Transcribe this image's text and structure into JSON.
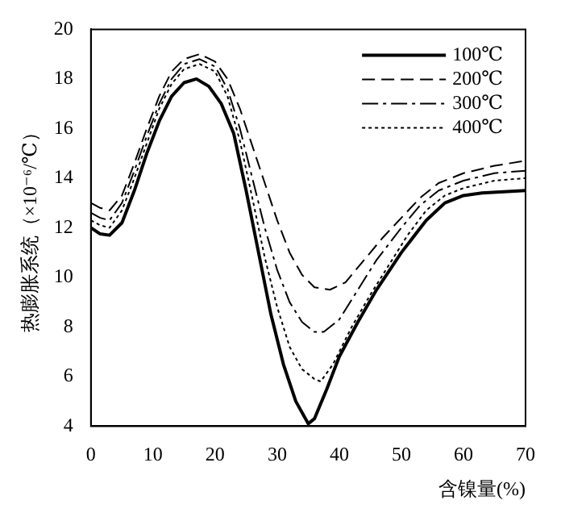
{
  "chart_data": {
    "type": "line",
    "xlabel": "含镍量(%)",
    "ylabel": "热膨胀系统（×10⁻⁶/℃）",
    "xlim": [
      0,
      70
    ],
    "xticks": [
      0,
      10,
      20,
      30,
      40,
      50,
      60,
      70
    ],
    "ylim": [
      4,
      20
    ],
    "yticks": [
      4,
      6,
      8,
      10,
      12,
      14,
      16,
      18,
      20
    ],
    "grid": false,
    "legend": "top right",
    "marker": "none",
    "series": [
      {
        "name": "100℃",
        "color": "#000000",
        "line_style": "solid",
        "x": [
          0,
          1.5,
          3,
          5,
          7,
          9,
          11,
          13,
          15,
          17,
          19,
          21,
          23,
          25,
          27,
          29,
          31,
          33,
          35,
          36,
          38,
          40,
          43,
          46,
          50,
          54,
          57,
          60,
          63,
          70
        ],
        "values": [
          12,
          11.75,
          11.7,
          12.2,
          13.5,
          15,
          16.3,
          17.3,
          17.85,
          18,
          17.7,
          17,
          15.8,
          13.5,
          11,
          8.5,
          6.5,
          5,
          4.1,
          4.3,
          5.5,
          6.8,
          8.2,
          9.5,
          11,
          12.3,
          13,
          13.3,
          13.4,
          13.5
        ]
      },
      {
        "name": "200℃",
        "color": "#000000",
        "line_style": "dashed",
        "x": [
          0,
          1.5,
          3,
          5,
          7,
          9,
          11,
          13,
          15,
          17.5,
          20,
          22,
          24,
          26,
          28,
          30,
          32,
          34,
          36,
          38.5,
          41,
          44,
          47,
          50,
          53,
          56,
          60,
          65,
          70
        ],
        "values": [
          13,
          12.8,
          12.7,
          13.3,
          14.6,
          16,
          17.3,
          18.3,
          18.8,
          19,
          18.7,
          18,
          16.8,
          15.3,
          13.8,
          12.3,
          11,
          10.1,
          9.6,
          9.5,
          9.8,
          10.7,
          11.6,
          12.4,
          13.2,
          13.8,
          14.2,
          14.5,
          14.7
        ]
      },
      {
        "name": "300℃",
        "color": "#000000",
        "line_style": "dashdot",
        "x": [
          0,
          1.5,
          3,
          5,
          7,
          9,
          11,
          13,
          15,
          17.5,
          20,
          22,
          24,
          26,
          28,
          30,
          32,
          34,
          36,
          37.5,
          40,
          43,
          46,
          50,
          53,
          56,
          60,
          65,
          70
        ],
        "values": [
          12.6,
          12.4,
          12.3,
          13,
          14.3,
          15.7,
          17,
          18,
          18.6,
          18.8,
          18.5,
          17.6,
          16,
          14,
          12,
          10.3,
          9,
          8.2,
          7.8,
          7.8,
          8.3,
          9.5,
          10.7,
          12,
          12.9,
          13.5,
          13.9,
          14.2,
          14.3
        ]
      },
      {
        "name": "400℃",
        "color": "#000000",
        "line_style": "dotted",
        "x": [
          0,
          1.5,
          3,
          5,
          7,
          9,
          11,
          13,
          15,
          17.5,
          20,
          22,
          24,
          26,
          28,
          30,
          32,
          34,
          36,
          37,
          39,
          42,
          45,
          48,
          51,
          54,
          57,
          60,
          65,
          70
        ],
        "values": [
          12.3,
          12.1,
          12,
          12.7,
          14,
          15.4,
          16.8,
          17.8,
          18.4,
          18.6,
          18.3,
          17.3,
          15.5,
          13.2,
          10.8,
          8.8,
          7.2,
          6.3,
          5.9,
          5.8,
          6.5,
          8,
          9.3,
          10.5,
          11.7,
          12.7,
          13.3,
          13.6,
          13.9,
          14
        ]
      }
    ]
  }
}
